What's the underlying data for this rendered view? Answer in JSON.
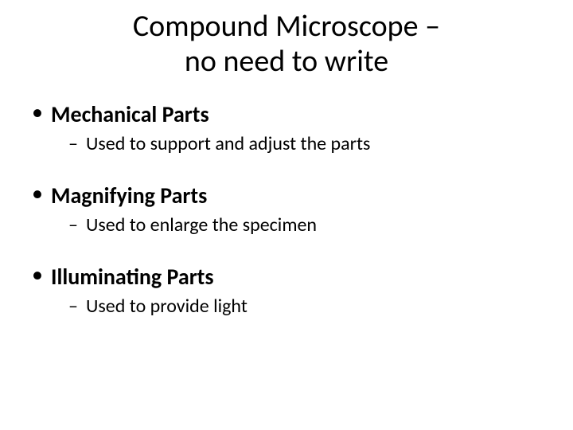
{
  "title": {
    "line1": "Compound Microscope –",
    "line2": "no need to write"
  },
  "bullets": [
    {
      "label": "Mechanical Parts",
      "sub": "Used to support and adjust the parts"
    },
    {
      "label": "Magnifying Parts",
      "sub": "Used to enlarge the specimen"
    },
    {
      "label": "Illuminating Parts",
      "sub": "Used to provide light"
    }
  ],
  "colors": {
    "background": "#ffffff",
    "text": "#000000"
  },
  "typography": {
    "title_fontsize": 38,
    "l1_fontsize": 28,
    "l2_fontsize": 24,
    "font_family": "Calibri"
  }
}
